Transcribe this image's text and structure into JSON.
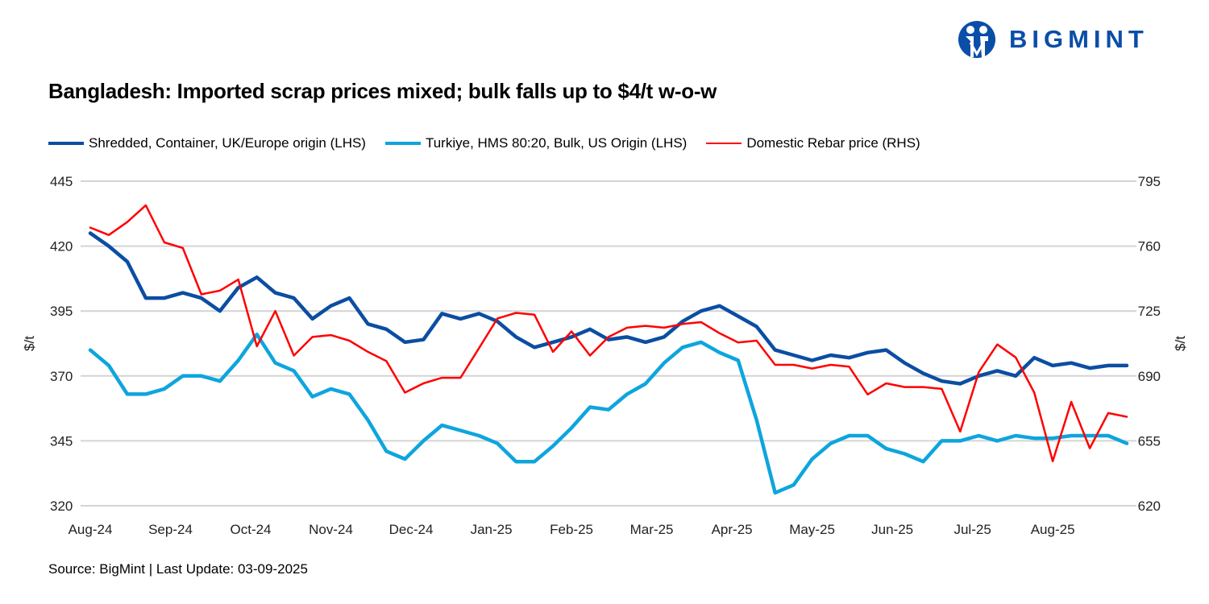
{
  "logo": {
    "text": "BIGMINT",
    "color": "#0a4ea8"
  },
  "chart_data": {
    "type": "line",
    "title": "Bangladesh: Imported scrap prices mixed; bulk falls up to $4/t w-o-w",
    "x_tick_labels": [
      "Aug-24",
      "Sep-24",
      "Oct-24",
      "Nov-24",
      "Dec-24",
      "Jan-25",
      "Feb-25",
      "Mar-25",
      "Apr-25",
      "May-25",
      "Jun-25",
      "Jul-25",
      "Aug-25"
    ],
    "x_frequency": "weekly",
    "ylabel_left": "$/t",
    "ylabel_right": "$/t",
    "ylim_left": [
      320,
      445
    ],
    "yticks_left": [
      320,
      345,
      370,
      395,
      420,
      445
    ],
    "ylim_right": [
      620,
      795
    ],
    "yticks_right": [
      620,
      655,
      690,
      725,
      760,
      795
    ],
    "grid": true,
    "legend_position": "top",
    "series": [
      {
        "name": "Shredded, Container, UK/Europe origin (LHS)",
        "axis": "left",
        "color": "#0b4ea2",
        "values": [
          425,
          420,
          414,
          400,
          400,
          402,
          400,
          395,
          404,
          408,
          402,
          400,
          392,
          397,
          400,
          390,
          388,
          383,
          384,
          394,
          392,
          394,
          391,
          385,
          381,
          383,
          385,
          388,
          384,
          385,
          383,
          385,
          391,
          395,
          397,
          393,
          389,
          380,
          378,
          376,
          378,
          377,
          379,
          380,
          375,
          371,
          368,
          367,
          370,
          372,
          370,
          377,
          374,
          375,
          373,
          374,
          374
        ]
      },
      {
        "name": "Turkiye, HMS 80:20, Bulk, US Origin (LHS)",
        "axis": "left",
        "color": "#0ea5dd",
        "values": [
          380,
          374,
          363,
          363,
          365,
          370,
          370,
          368,
          376,
          386,
          375,
          372,
          362,
          365,
          363,
          353,
          341,
          338,
          345,
          351,
          349,
          347,
          344,
          337,
          337,
          343,
          350,
          358,
          357,
          363,
          367,
          375,
          381,
          383,
          379,
          376,
          353,
          325,
          328,
          338,
          344,
          347,
          347,
          342,
          340,
          337,
          345,
          345,
          347,
          345,
          347,
          346,
          346,
          347,
          347,
          347,
          344
        ]
      },
      {
        "name": "Domestic Rebar price (RHS)",
        "axis": "right",
        "color": "#ff0000",
        "values": [
          770,
          766,
          773,
          782,
          762,
          759,
          734,
          736,
          742,
          706,
          725,
          701,
          711,
          712,
          709,
          703,
          698,
          681,
          686,
          689,
          689,
          705,
          721,
          724,
          723,
          703,
          714,
          701,
          711,
          716,
          717,
          716,
          718,
          719,
          713,
          708,
          709,
          696,
          696,
          694,
          696,
          695,
          680,
          686,
          684,
          684,
          683,
          660,
          692,
          707,
          700,
          681,
          644,
          676,
          651,
          670,
          668
        ]
      }
    ],
    "source": "Source: BigMint | Last Update: 03-09-2025"
  }
}
